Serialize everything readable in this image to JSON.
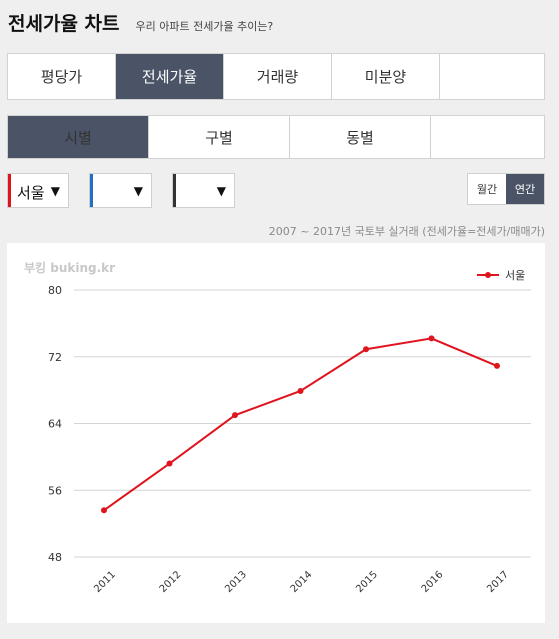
{
  "header": {
    "title": "전세가율 차트",
    "subtitle": "우리 아파트 전세가율 추이는?"
  },
  "tabs_primary": [
    {
      "label": "평당가"
    },
    {
      "label": "전세가율",
      "active": true
    },
    {
      "label": "거래량"
    },
    {
      "label": "미분양"
    },
    {
      "label": ""
    }
  ],
  "tabs_secondary": [
    {
      "label": "시별",
      "active": true
    },
    {
      "label": "구별"
    },
    {
      "label": "동별"
    },
    {
      "label": ""
    }
  ],
  "selectors": [
    {
      "value": "서울",
      "color": "#e0141e"
    },
    {
      "value": "",
      "color": "#1f6fc6"
    },
    {
      "value": "",
      "color": "#333333"
    }
  ],
  "period_toggle": {
    "monthly": "월간",
    "yearly": "연간",
    "active": "yearly"
  },
  "source_note": "2007 ~ 2017년 국토부 실거래 (전세가율=전세가/매매가)",
  "watermark": "부킹 buking.kr",
  "colors": {
    "accent": "#4a5466",
    "series": "#e0141e"
  },
  "chart_data": {
    "type": "line",
    "x": [
      "2011",
      "2012",
      "2013",
      "2014",
      "2015",
      "2016",
      "2017"
    ],
    "series": [
      {
        "name": "서울",
        "values": [
          53.6,
          59.2,
          65.0,
          67.9,
          72.9,
          74.2,
          70.9
        ]
      }
    ],
    "ylim": [
      48,
      80
    ],
    "yticks": [
      48,
      56,
      64,
      72,
      80
    ],
    "legend": "top-right",
    "grid": true
  }
}
